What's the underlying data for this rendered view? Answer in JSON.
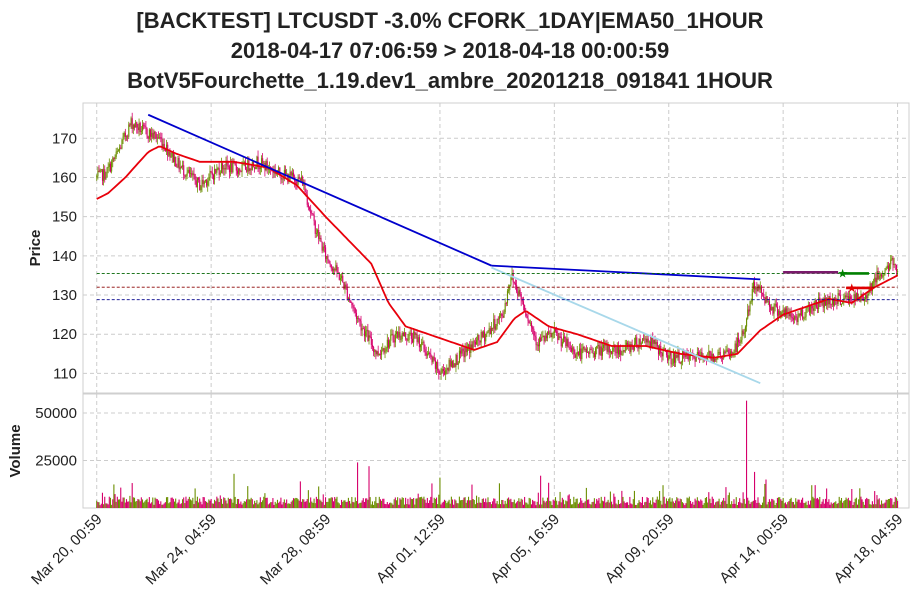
{
  "title": {
    "line1": "[BACKTEST] LTCUSDT -3.0% CFORK_1DAY|EMA50_1HOUR",
    "line2": "2018-04-17 07:06:59 > 2018-04-18 00:00:59",
    "line3": "BotV5Fourchette_1.19.dev1_ambre_20201218_091841 1HOUR"
  },
  "colors": {
    "up_candle": "#6b8e00",
    "down_candle": "#d6006b",
    "ema": "#e8000b",
    "trend_high": "#0000cc",
    "trend_low": "#a8d8ea",
    "level_green": "#006400",
    "level_red": "#8b0000",
    "level_blue": "#00008b",
    "grid": "#cccccc"
  },
  "chart_data": [
    {
      "type": "candlestick",
      "ylabel": "Price",
      "ylim": [
        105,
        179
      ],
      "yticks": [
        110,
        120,
        130,
        140,
        150,
        160,
        170
      ],
      "x_tick_labels": [
        "Mar 20, 00:59",
        "Mar 24, 04:59",
        "Mar 28, 08:59",
        "Apr 01, 12:59",
        "Apr 05, 16:59",
        "Apr 09, 20:59",
        "Apr 14, 00:59",
        "Apr 18, 04:59"
      ],
      "x_range_hours": [
        -12,
        710
      ],
      "price_path": [
        [
          0,
          160
        ],
        [
          8,
          161
        ],
        [
          18,
          166
        ],
        [
          30,
          174
        ],
        [
          40,
          172
        ],
        [
          55,
          170
        ],
        [
          72,
          163
        ],
        [
          90,
          158
        ],
        [
          110,
          163
        ],
        [
          125,
          162
        ],
        [
          140,
          164
        ],
        [
          160,
          161
        ],
        [
          180,
          159
        ],
        [
          190,
          148
        ],
        [
          200,
          140
        ],
        [
          214,
          134
        ],
        [
          228,
          124
        ],
        [
          245,
          115
        ],
        [
          262,
          120
        ],
        [
          280,
          119
        ],
        [
          300,
          110
        ],
        [
          320,
          115
        ],
        [
          340,
          120
        ],
        [
          355,
          125
        ],
        [
          362,
          135
        ],
        [
          370,
          130
        ],
        [
          385,
          118
        ],
        [
          400,
          120
        ],
        [
          420,
          115
        ],
        [
          440,
          116
        ],
        [
          460,
          116
        ],
        [
          480,
          119
        ],
        [
          500,
          114
        ],
        [
          520,
          114
        ],
        [
          555,
          115
        ],
        [
          565,
          120
        ],
        [
          575,
          133
        ],
        [
          590,
          127
        ],
        [
          610,
          124
        ],
        [
          630,
          128
        ],
        [
          650,
          129
        ],
        [
          670,
          129
        ],
        [
          680,
          134
        ],
        [
          695,
          138
        ],
        [
          700,
          137
        ]
      ],
      "ema_path": [
        [
          0,
          154.5
        ],
        [
          10,
          156
        ],
        [
          25,
          160
        ],
        [
          45,
          166.5
        ],
        [
          55,
          168
        ],
        [
          70,
          166
        ],
        [
          90,
          164
        ],
        [
          120,
          164
        ],
        [
          150,
          162.5
        ],
        [
          175,
          158
        ],
        [
          200,
          150
        ],
        [
          220,
          144
        ],
        [
          240,
          138
        ],
        [
          255,
          128
        ],
        [
          270,
          122
        ],
        [
          290,
          120
        ],
        [
          310,
          118
        ],
        [
          330,
          116
        ],
        [
          350,
          118
        ],
        [
          365,
          124
        ],
        [
          375,
          126
        ],
        [
          395,
          122
        ],
        [
          420,
          120
        ],
        [
          450,
          117
        ],
        [
          480,
          117
        ],
        [
          510,
          115
        ],
        [
          540,
          114
        ],
        [
          560,
          115
        ],
        [
          580,
          121
        ],
        [
          600,
          125
        ],
        [
          620,
          127
        ],
        [
          640,
          129
        ],
        [
          660,
          128
        ],
        [
          680,
          132
        ],
        [
          700,
          135
        ]
      ],
      "trend_lines": [
        {
          "from": [
            45,
            176
          ],
          "to": [
            345,
            137.5
          ]
        },
        {
          "from": [
            345,
            137.5
          ],
          "to": [
            580,
            134
          ]
        },
        {
          "from": [
            345,
            137
          ],
          "to": [
            580,
            107.5
          ]
        }
      ],
      "levels": [
        {
          "value": 135.5,
          "from_hour": 0,
          "to_hour": 700
        },
        {
          "value": 132.0,
          "from_hour": 0,
          "to_hour": 700
        },
        {
          "value": 128.8,
          "from_hour": 0,
          "to_hour": 700
        }
      ],
      "trade_markers": [
        {
          "type": "segment",
          "color": "purple",
          "from": [
            600,
            135.8
          ],
          "to": [
            648,
            135.8
          ]
        },
        {
          "type": "segment",
          "color": "green",
          "from": [
            650,
            135.5
          ],
          "to": [
            675,
            135.5
          ]
        },
        {
          "type": "segment",
          "color": "red",
          "from": [
            655,
            131.8
          ],
          "to": [
            678,
            131.8
          ]
        }
      ]
    },
    {
      "type": "bar",
      "ylabel": "Volume",
      "ylim": [
        0,
        60000
      ],
      "yticks": [
        25000,
        50000
      ],
      "spikes": [
        [
          120,
          18000
        ],
        [
          178,
          14000
        ],
        [
          228,
          24000
        ],
        [
          238,
          22000
        ],
        [
          300,
          16000
        ],
        [
          352,
          13000
        ],
        [
          388,
          17000
        ],
        [
          470,
          9000
        ],
        [
          495,
          12000
        ],
        [
          550,
          11000
        ],
        [
          568,
          56500
        ],
        [
          575,
          19000
        ],
        [
          585,
          15000
        ],
        [
          625,
          12000
        ],
        [
          660,
          10000
        ]
      ]
    }
  ]
}
